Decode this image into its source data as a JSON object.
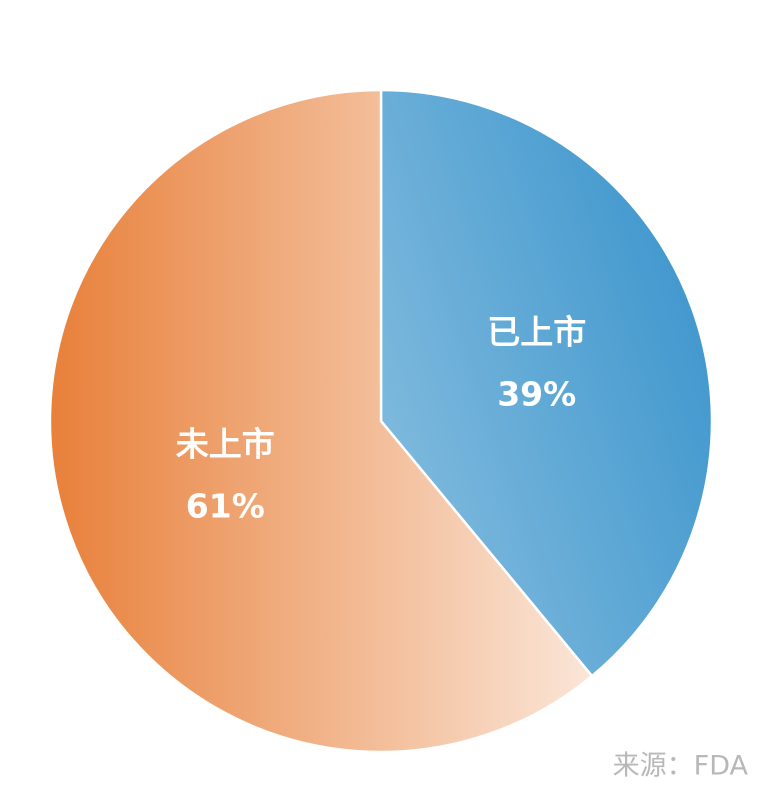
{
  "chart_data": {
    "type": "pie",
    "categories": [
      "已上市",
      "未上市"
    ],
    "values": [
      39,
      61
    ],
    "value_labels": [
      "39%",
      "61%"
    ],
    "colors": [
      "#3a94cc",
      "#e8803a"
    ],
    "source": "来源：FDA"
  }
}
